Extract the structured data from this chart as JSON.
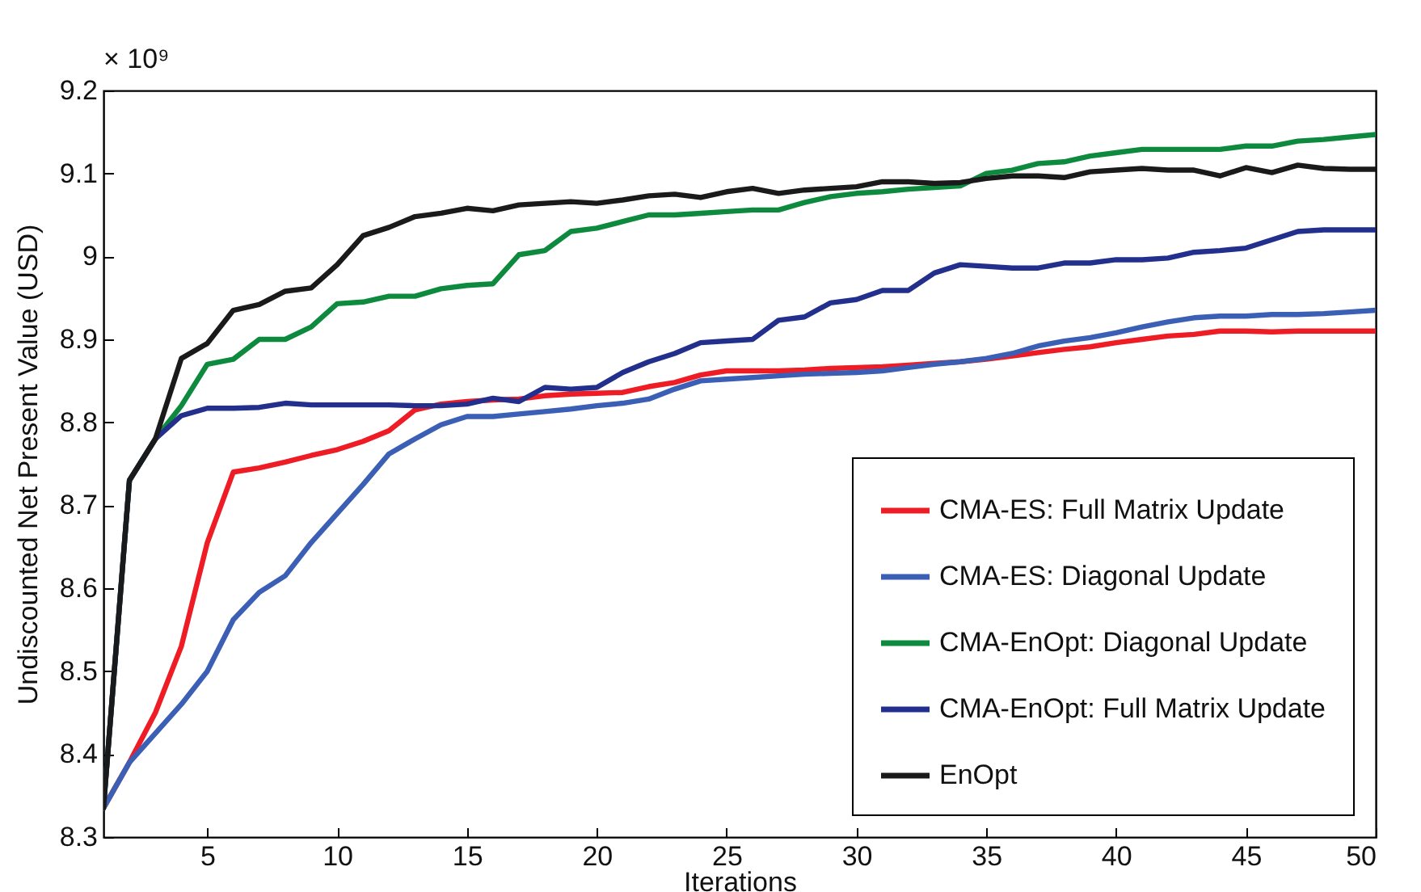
{
  "chart_data": {
    "type": "line",
    "xlabel": "Iterations",
    "ylabel": "Undiscounted Net Present Value (USD)",
    "annotations": [
      "× 10⁹"
    ],
    "x": [
      1,
      2,
      3,
      4,
      5,
      6,
      7,
      8,
      9,
      10,
      11,
      12,
      13,
      14,
      15,
      16,
      17,
      18,
      19,
      20,
      21,
      22,
      23,
      24,
      25,
      26,
      27,
      28,
      29,
      30,
      31,
      32,
      33,
      34,
      35,
      36,
      37,
      38,
      39,
      40,
      41,
      42,
      43,
      44,
      45,
      46,
      47,
      48,
      49,
      50
    ],
    "series": [
      {
        "name": "CMA-ES: Full Matrix Update",
        "color": "#ee1c25",
        "values": [
          8.335,
          8.39,
          8.45,
          8.53,
          8.655,
          8.74,
          8.745,
          8.752,
          8.76,
          8.767,
          8.777,
          8.79,
          8.815,
          8.822,
          8.825,
          8.827,
          8.828,
          8.832,
          8.834,
          8.835,
          8.836,
          8.843,
          8.848,
          8.857,
          8.862,
          8.862,
          8.862,
          8.863,
          8.865,
          8.866,
          8.867,
          8.869,
          8.871,
          8.873,
          8.876,
          8.88,
          8.884,
          8.888,
          8.891,
          8.896,
          8.9,
          8.904,
          8.906,
          8.91,
          8.91,
          8.909,
          8.91,
          8.91,
          8.91,
          8.91
        ]
      },
      {
        "name": "CMA-ES: Diagonal Update",
        "color": "#3a5fb5",
        "values": [
          8.335,
          8.39,
          8.425,
          8.46,
          8.5,
          8.562,
          8.595,
          8.615,
          8.655,
          8.69,
          8.725,
          8.762,
          8.78,
          8.797,
          8.807,
          8.807,
          8.81,
          8.813,
          8.816,
          8.82,
          8.823,
          8.828,
          8.84,
          8.85,
          8.852,
          8.854,
          8.856,
          8.858,
          8.859,
          8.86,
          8.862,
          8.866,
          8.87,
          8.873,
          8.877,
          8.883,
          8.892,
          8.898,
          8.902,
          8.908,
          8.915,
          8.921,
          8.926,
          8.928,
          8.928,
          8.93,
          8.93,
          8.931,
          8.933,
          8.935
        ]
      },
      {
        "name": "CMA-EnOpt: Diagonal Update",
        "color": "#0d8a3e",
        "values": [
          8.335,
          8.73,
          8.78,
          8.82,
          8.87,
          8.876,
          8.9,
          8.9,
          8.915,
          8.943,
          8.945,
          8.952,
          8.952,
          8.961,
          8.965,
          8.967,
          9.002,
          9.007,
          9.03,
          9.034,
          9.042,
          9.05,
          9.05,
          9.052,
          9.054,
          9.056,
          9.056,
          9.065,
          9.072,
          9.076,
          9.078,
          9.081,
          9.083,
          9.085,
          9.1,
          9.104,
          9.112,
          9.114,
          9.121,
          9.125,
          9.129,
          9.129,
          9.129,
          9.129,
          9.133,
          9.133,
          9.139,
          9.141,
          9.144,
          9.147
        ]
      },
      {
        "name": "CMA-EnOpt: Full Matrix Update",
        "color": "#232f8c",
        "values": [
          8.335,
          8.73,
          8.78,
          8.808,
          8.817,
          8.817,
          8.818,
          8.823,
          8.821,
          8.821,
          8.821,
          8.821,
          8.82,
          8.82,
          8.822,
          8.829,
          8.825,
          8.842,
          8.84,
          8.842,
          8.86,
          8.873,
          8.883,
          8.896,
          8.898,
          8.9,
          8.923,
          8.927,
          8.944,
          8.948,
          8.959,
          8.959,
          8.98,
          8.99,
          8.988,
          8.986,
          8.986,
          8.992,
          8.992,
          8.996,
          8.996,
          8.998,
          9.005,
          9.007,
          9.01,
          9.02,
          9.03,
          9.032,
          9.032,
          9.032
        ]
      },
      {
        "name": "EnOpt",
        "color": "#1a1a1a",
        "values": [
          8.335,
          8.73,
          8.78,
          8.877,
          8.895,
          8.935,
          8.942,
          8.958,
          8.962,
          8.99,
          9.025,
          9.035,
          9.048,
          9.052,
          9.058,
          9.055,
          9.062,
          9.064,
          9.066,
          9.064,
          9.068,
          9.073,
          9.075,
          9.071,
          9.078,
          9.082,
          9.076,
          9.08,
          9.082,
          9.084,
          9.09,
          9.09,
          9.088,
          9.089,
          9.094,
          9.097,
          9.097,
          9.095,
          9.102,
          9.104,
          9.106,
          9.104,
          9.104,
          9.097,
          9.107,
          9.101,
          9.11,
          9.106,
          9.105,
          9.105
        ]
      }
    ],
    "xlim": [
      1,
      50
    ],
    "xticks": [
      5,
      10,
      15,
      20,
      25,
      30,
      35,
      40,
      45,
      50
    ],
    "ylim": [
      8.3,
      9.2
    ],
    "yticks": [
      8.3,
      8.4,
      8.5,
      8.6,
      8.7,
      8.8,
      8.9,
      9,
      9.1,
      9.2
    ],
    "legend": "bottom right",
    "line_style": "solid"
  }
}
